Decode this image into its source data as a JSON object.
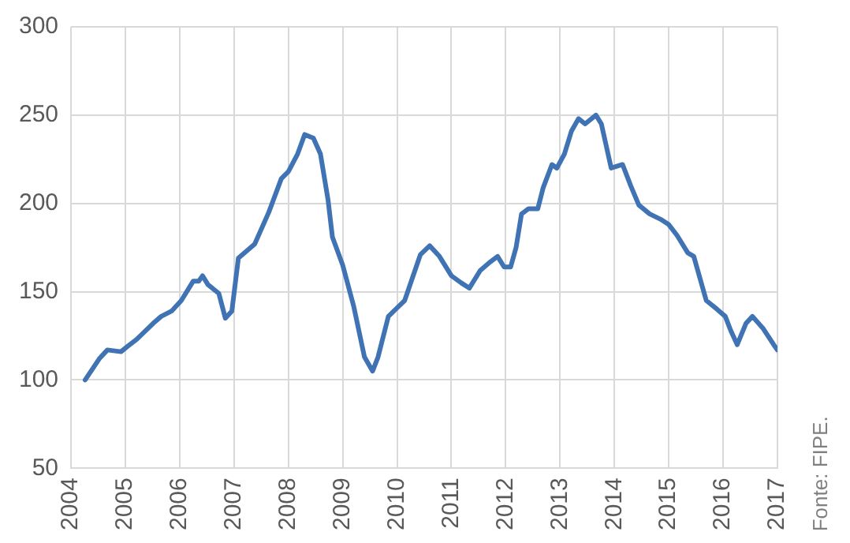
{
  "chart_data": {
    "type": "line",
    "color": "#4073b4",
    "x": [
      2004.26,
      2004.52,
      2004.67,
      2004.92,
      2005.04,
      2005.21,
      2005.51,
      2005.66,
      2005.85,
      2006.03,
      2006.25,
      2006.35,
      2006.42,
      2006.52,
      2006.72,
      2006.84,
      2006.96,
      2007.08,
      2007.38,
      2007.64,
      2007.87,
      2008.0,
      2008.17,
      2008.3,
      2008.46,
      2008.59,
      2008.73,
      2008.81,
      2009.0,
      2009.2,
      2009.4,
      2009.55,
      2009.65,
      2009.84,
      2010.14,
      2010.43,
      2010.6,
      2010.78,
      2011.0,
      2011.18,
      2011.33,
      2011.53,
      2011.72,
      2011.85,
      2011.97,
      2012.09,
      2012.19,
      2012.29,
      2012.42,
      2012.59,
      2012.69,
      2012.85,
      2012.94,
      2013.08,
      2013.21,
      2013.34,
      2013.46,
      2013.66,
      2013.76,
      2013.94,
      2014.15,
      2014.3,
      2014.45,
      2014.65,
      2014.85,
      2015.0,
      2015.15,
      2015.35,
      2015.46,
      2015.69,
      2015.89,
      2016.04,
      2016.14,
      2016.26,
      2016.42,
      2016.54,
      2016.74,
      2016.93,
      2017.0
    ],
    "values": [
      100,
      112,
      117,
      116,
      119,
      123,
      132,
      136,
      139,
      145,
      156,
      156,
      159,
      154,
      149,
      135,
      139,
      169,
      177,
      195,
      214,
      218,
      228,
      239,
      237,
      228,
      202,
      181,
      165,
      142,
      113,
      105,
      113,
      136,
      145,
      171,
      176,
      170,
      159,
      155,
      152,
      162,
      167,
      170,
      164,
      164,
      175,
      194,
      197,
      197,
      209,
      222,
      220,
      228,
      241,
      248,
      245,
      250,
      245,
      220,
      222,
      210,
      199,
      194,
      191,
      188,
      182,
      172,
      170,
      145,
      140,
      136,
      128,
      120,
      132,
      136,
      129,
      120,
      117
    ],
    "xlim": [
      2004,
      2017
    ],
    "xticks": [
      2004,
      2005,
      2006,
      2007,
      2008,
      2009,
      2010,
      2011,
      2012,
      2013,
      2014,
      2015,
      2016,
      2017
    ],
    "ylim": [
      50,
      300
    ],
    "yticks": [
      50,
      100,
      150,
      200,
      250,
      300
    ],
    "grid": true,
    "legend": false,
    "marker": "none",
    "line_style": "solid",
    "annotations": [
      "Fonte: FIPE."
    ]
  }
}
